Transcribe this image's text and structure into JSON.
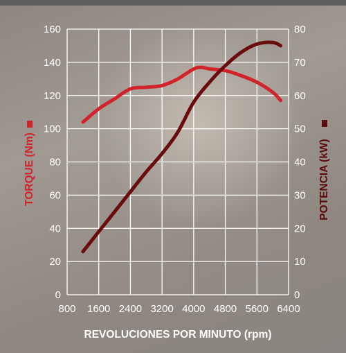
{
  "chart_data": {
    "type": "line",
    "xlabel": "REVOLUCIONES POR MINUTO (rpm)",
    "ylabel_left": "TORQUE (Nm)",
    "ylabel_right": "POTENCIA (kW)",
    "xlim": [
      800,
      6400
    ],
    "xticks": [
      800,
      1600,
      2400,
      3200,
      4000,
      4800,
      5600,
      6400
    ],
    "ylim_left": [
      0,
      160
    ],
    "yticks_left": [
      0,
      20,
      40,
      60,
      80,
      100,
      120,
      140,
      160
    ],
    "ylim_right": [
      0,
      80
    ],
    "yticks_right": [
      0,
      10,
      20,
      30,
      40,
      50,
      60,
      70,
      80
    ],
    "grid": true,
    "series": [
      {
        "name": "TORQUE (Nm)",
        "axis": "left",
        "color": "#d2232a",
        "x": [
          1200,
          1600,
          2000,
          2400,
          2800,
          3200,
          3600,
          4000,
          4200,
          4400,
          4800,
          5200,
          5600,
          6000,
          6200
        ],
        "values": [
          104,
          112,
          118,
          124,
          125,
          126,
          130,
          136,
          137,
          136,
          135,
          132,
          128,
          122,
          117
        ]
      },
      {
        "name": "POTENCIA (kW)",
        "axis": "right",
        "color": "#6b0c0c",
        "x": [
          1200,
          1600,
          2000,
          2400,
          2800,
          3200,
          3600,
          4000,
          4400,
          4800,
          5200,
          5600,
          6000,
          6200
        ],
        "values": [
          13,
          19,
          25,
          31,
          37,
          42.5,
          49,
          58,
          64,
          69,
          73,
          75.5,
          76,
          75
        ]
      }
    ]
  }
}
